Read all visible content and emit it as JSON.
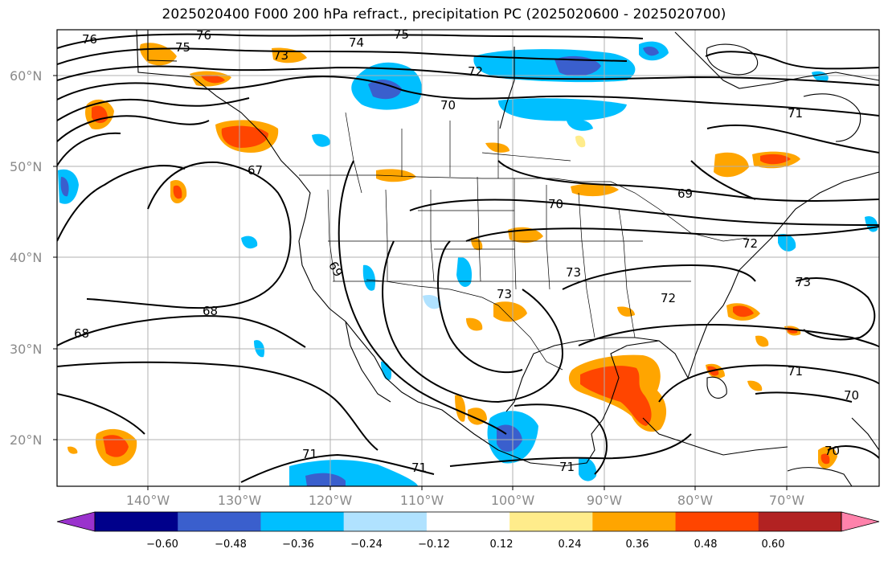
{
  "title": "2025020400 F000 200 hPa refract., precipitation PC (2025020600 - 2025020700)",
  "map": {
    "lat_labels": [
      "60°N",
      "50°N",
      "40°N",
      "30°N",
      "20°N"
    ],
    "lon_labels": [
      "140°W",
      "130°W",
      "120°W",
      "110°W",
      "100°W",
      "90°W",
      "80°W",
      "70°W"
    ],
    "contour_labels": [
      "76",
      "75",
      "76",
      "74",
      "75",
      "73",
      "72",
      "70",
      "71",
      "67",
      "70",
      "69",
      "72",
      "69",
      "73",
      "73",
      "68",
      "68",
      "73",
      "72",
      "71",
      "70",
      "71",
      "71",
      "70",
      "71"
    ]
  },
  "colorbar": {
    "ticks": [
      "−0.60",
      "−0.48",
      "−0.36",
      "−0.24",
      "−0.12",
      "0.12",
      "0.24",
      "0.36",
      "0.48",
      "0.60"
    ],
    "colors": [
      "#9a32cd",
      "#00008b",
      "#3a5fcd",
      "#00bfff",
      "#b0e2ff",
      "#ffffff",
      "#ffec8b",
      "#ffa500",
      "#ff4500",
      "#b22222",
      "#ff82ab"
    ]
  }
}
